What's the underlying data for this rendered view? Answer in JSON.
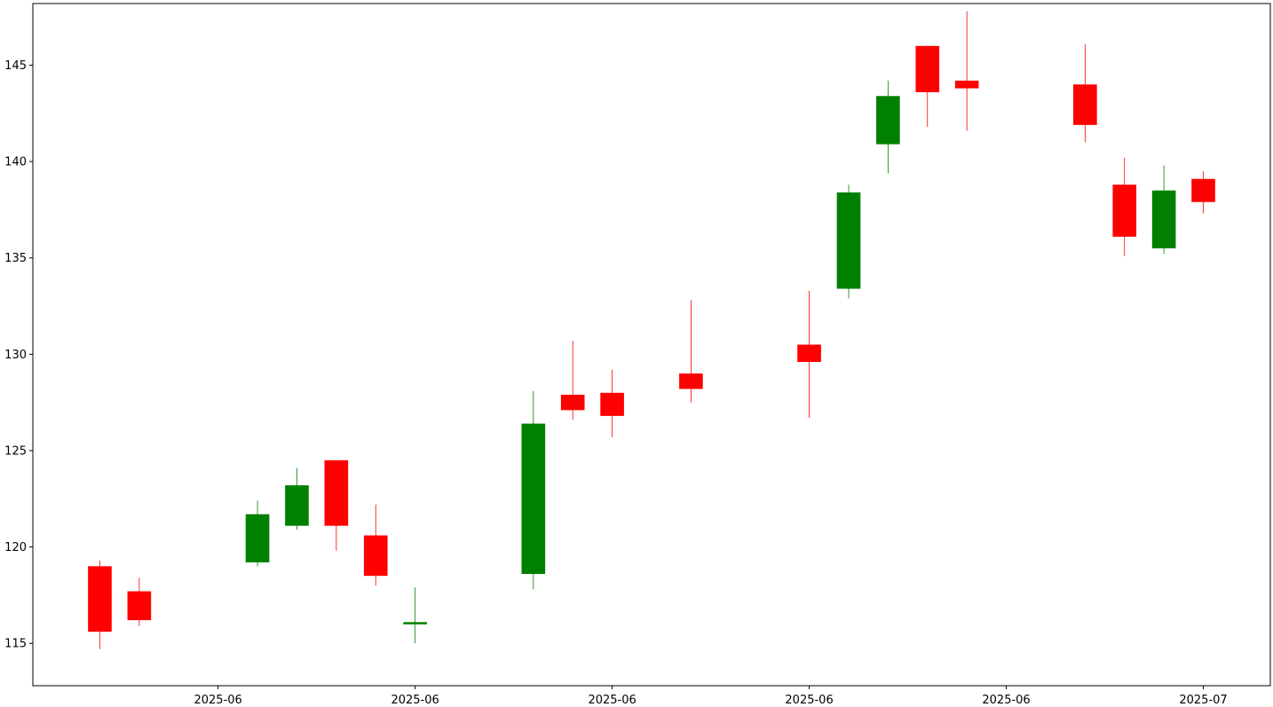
{
  "chart_data": {
    "type": "candlestick",
    "title": "",
    "xlabel": "",
    "ylabel": "",
    "ylim": [
      112.8,
      148.2
    ],
    "grid": false,
    "up_color": "#008000",
    "down_color": "#ff0000",
    "y_ticks": [
      115,
      120,
      125,
      130,
      135,
      140,
      145
    ],
    "x_ticks": [
      {
        "pos": 3,
        "label": "2025-06"
      },
      {
        "pos": 8,
        "label": "2025-06"
      },
      {
        "pos": 13,
        "label": "2025-06"
      },
      {
        "pos": 18,
        "label": "2025-06"
      },
      {
        "pos": 23,
        "label": "2025-06"
      },
      {
        "pos": 28,
        "label": "2025-07"
      }
    ],
    "xlim": [
      -1.7,
      29.7
    ],
    "candles": [
      {
        "x": 0,
        "open": 119.0,
        "high": 119.3,
        "low": 114.7,
        "close": 115.6
      },
      {
        "x": 1,
        "open": 117.7,
        "high": 118.4,
        "low": 115.9,
        "close": 116.2
      },
      {
        "x": 4,
        "open": 119.2,
        "high": 122.4,
        "low": 119.0,
        "close": 121.7
      },
      {
        "x": 5,
        "open": 121.1,
        "high": 124.1,
        "low": 120.9,
        "close": 123.2
      },
      {
        "x": 6,
        "open": 124.5,
        "high": 124.5,
        "low": 119.8,
        "close": 121.1
      },
      {
        "x": 7,
        "open": 120.6,
        "high": 122.2,
        "low": 118.0,
        "close": 118.5
      },
      {
        "x": 8,
        "open": 116.0,
        "high": 117.9,
        "low": 115.0,
        "close": 116.1
      },
      {
        "x": 11,
        "open": 118.6,
        "high": 128.1,
        "low": 117.8,
        "close": 126.4
      },
      {
        "x": 12,
        "open": 127.9,
        "high": 130.7,
        "low": 126.6,
        "close": 127.1
      },
      {
        "x": 13,
        "open": 128.0,
        "high": 129.2,
        "low": 125.7,
        "close": 126.8
      },
      {
        "x": 15,
        "open": 129.0,
        "high": 132.8,
        "low": 127.5,
        "close": 128.2
      },
      {
        "x": 18,
        "open": 130.5,
        "high": 133.3,
        "low": 126.7,
        "close": 129.6
      },
      {
        "x": 19,
        "open": 133.4,
        "high": 138.8,
        "low": 132.9,
        "close": 138.4
      },
      {
        "x": 20,
        "open": 140.9,
        "high": 144.2,
        "low": 139.4,
        "close": 143.4
      },
      {
        "x": 21,
        "open": 146.0,
        "high": 146.0,
        "low": 141.8,
        "close": 143.6
      },
      {
        "x": 22,
        "open": 144.2,
        "high": 147.8,
        "low": 141.6,
        "close": 143.8
      },
      {
        "x": 25,
        "open": 144.0,
        "high": 146.1,
        "low": 141.0,
        "close": 141.9
      },
      {
        "x": 26,
        "open": 138.8,
        "high": 140.2,
        "low": 135.1,
        "close": 136.1
      },
      {
        "x": 27,
        "open": 135.5,
        "high": 139.8,
        "low": 135.2,
        "close": 138.5
      },
      {
        "x": 28,
        "open": 139.1,
        "high": 139.5,
        "low": 137.3,
        "close": 137.9
      }
    ]
  }
}
